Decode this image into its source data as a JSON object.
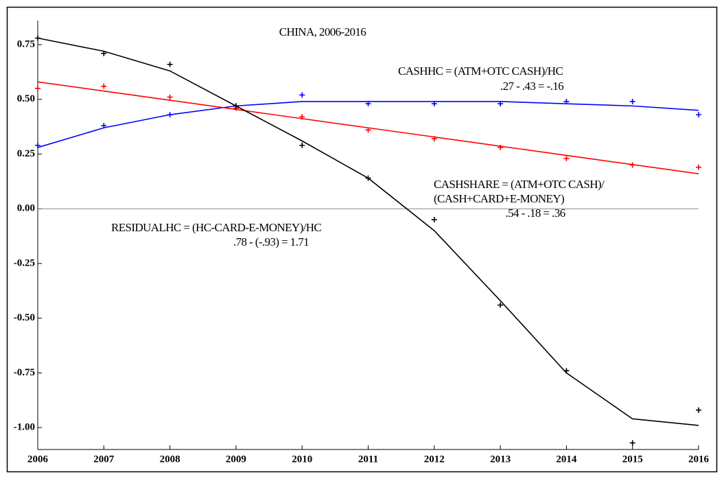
{
  "chart_data": {
    "type": "scatter",
    "title": "CHINA, 2006-2016",
    "x": [
      2006,
      2007,
      2008,
      2009,
      2010,
      2011,
      2012,
      2013,
      2014,
      2015,
      2016
    ],
    "xlim": [
      2006,
      2016
    ],
    "xticks": [
      2006,
      2007,
      2008,
      2009,
      2010,
      2011,
      2012,
      2013,
      2014,
      2015,
      2016
    ],
    "ylim": [
      -1.1,
      0.86
    ],
    "yticks": [
      {
        "value": -1,
        "label": "-1.00"
      },
      -0.75,
      {
        "value": -0.5,
        "label": "-0.50"
      },
      -0.25,
      {
        "value": 0,
        "label": "0.00"
      },
      0.25,
      {
        "value": 0.5,
        "label": "0.50"
      },
      0.75
    ],
    "zero_line": true,
    "series": [
      {
        "color": "#0000ff",
        "values": [
          0.29,
          0.38,
          0.43,
          0.47,
          0.52,
          0.48,
          0.48,
          0.48,
          0.49,
          0.49,
          0.43
        ],
        "fit": [
          0.28,
          0.37,
          0.43,
          0.47,
          0.49,
          0.49,
          0.49,
          0.49,
          0.48,
          0.47,
          0.45
        ]
      },
      {
        "color": "#ff0000",
        "values": [
          0.55,
          0.56,
          0.51,
          0.46,
          0.42,
          0.36,
          0.32,
          0.28,
          0.23,
          0.2,
          0.19
        ],
        "fit": [
          0.58,
          0.538,
          0.496,
          0.454,
          0.412,
          0.37,
          0.328,
          0.286,
          0.244,
          0.202,
          0.16
        ]
      },
      {
        "color": "#000000",
        "values": [
          0.78,
          0.71,
          0.66,
          0.47,
          0.29,
          0.14,
          -0.05,
          -0.44,
          -0.74,
          -1.07,
          -0.92
        ],
        "fit": [
          0.78,
          0.72,
          0.63,
          0.47,
          0.31,
          0.14,
          -0.1,
          -0.42,
          -0.75,
          -0.96,
          -0.99
        ]
      }
    ],
    "annotations": [
      "CASHHC = (ATM+OTC CASH)/HC",
      ".27 - .43 = -.16",
      "CASHSHARE = (ATM+OTC CASH)/",
      "(CASH+CARD+E-MONEY)",
      ".54 - .18 = .36",
      "RESIDUALHC = (HC-CARD-E-MONEY)/HC",
      ".78 - (-.93) = 1.71"
    ]
  }
}
